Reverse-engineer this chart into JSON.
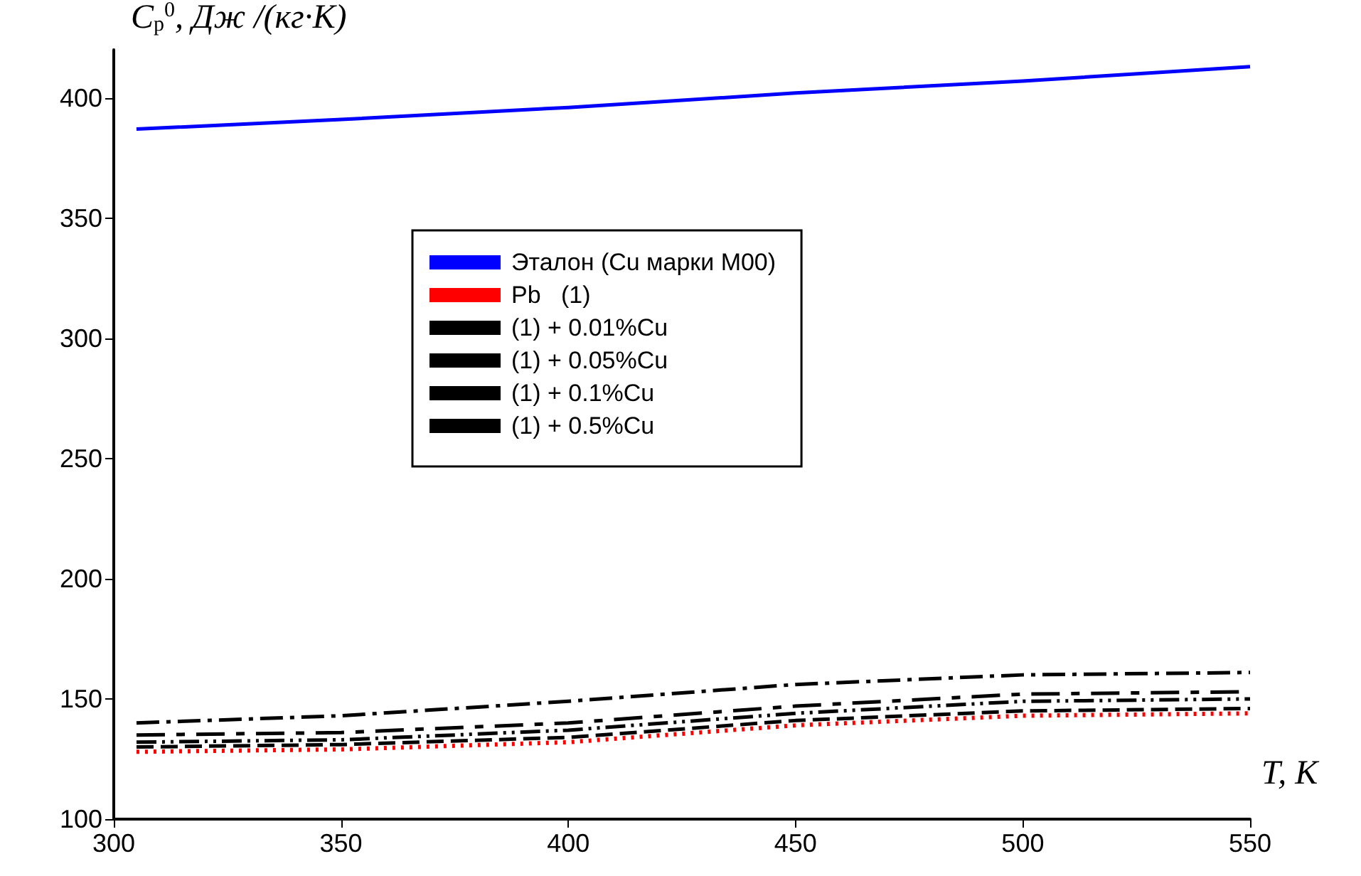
{
  "chart_data": {
    "type": "line",
    "xlabel": "T, K",
    "ylabel": "C$_{p}$$^{0}$, Дж /(кг·К)",
    "x": [
      305,
      350,
      400,
      450,
      500,
      550
    ],
    "series": [
      {
        "name": "Эталон (Cu марки M00)",
        "color": "#0000ff",
        "line_style": "solid",
        "values": [
          387,
          391,
          396,
          402,
          407,
          413
        ]
      },
      {
        "name": "Pb   (1)",
        "color": "#ff0000",
        "line_style": "dotted",
        "values": [
          128,
          129,
          132,
          139,
          143,
          144
        ]
      },
      {
        "name": "(1) + 0.01%Cu",
        "color": "#000000",
        "line_style": "dashed",
        "values": [
          130,
          131,
          134,
          141,
          145,
          146
        ]
      },
      {
        "name": "(1) + 0.05%Cu",
        "color": "#000000",
        "line_style": "dashed",
        "values": [
          132,
          133,
          137,
          144,
          149,
          150
        ]
      },
      {
        "name": "(1) + 0.1%Cu",
        "color": "#000000",
        "line_style": "dashed",
        "values": [
          135,
          136,
          140,
          147,
          152,
          153
        ]
      },
      {
        "name": "(1) + 0.5%Cu",
        "color": "#000000",
        "line_style": "dashed",
        "values": [
          140,
          143,
          149,
          156,
          160,
          161
        ]
      }
    ],
    "xlim": [
      300,
      550
    ],
    "xticks": [
      300,
      350,
      400,
      450,
      500,
      550
    ],
    "ylim": [
      100,
      420
    ],
    "yticks": [
      100,
      150,
      200,
      250,
      300,
      350,
      400
    ],
    "grid": false,
    "legend": "center",
    "marker": "none"
  }
}
